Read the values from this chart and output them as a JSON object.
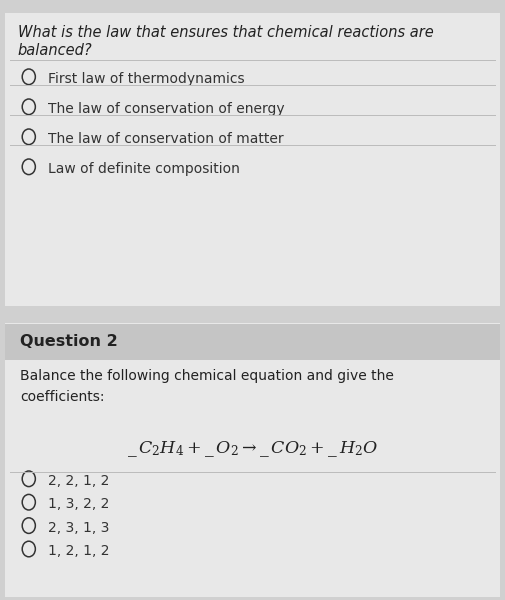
{
  "bg_color": "#d0d0d0",
  "card_color": "#e8e8e8",
  "header_color": "#c5c5c5",
  "question1_text": "What is the law that ensures that chemical reactions are balanced?",
  "q1_options": [
    "First law of thermodynamics",
    "The law of conservation of energy",
    "The law of conservation of matter",
    "Law of definite composition"
  ],
  "q2_header": "Question 2",
  "q2_text": "Balance the following chemical equation and give the\ncoefficients:",
  "q2_options": [
    "2, 2, 1, 2",
    "1, 3, 2, 2",
    "2, 3, 1, 3",
    "1, 2, 1, 2"
  ],
  "text_color": "#222222",
  "option_color": "#333333",
  "divider_color": "#bbbbbb",
  "font_size_question": 10.5,
  "font_size_option": 10.0,
  "font_size_q2header": 11.5,
  "font_size_equation": 12.5
}
